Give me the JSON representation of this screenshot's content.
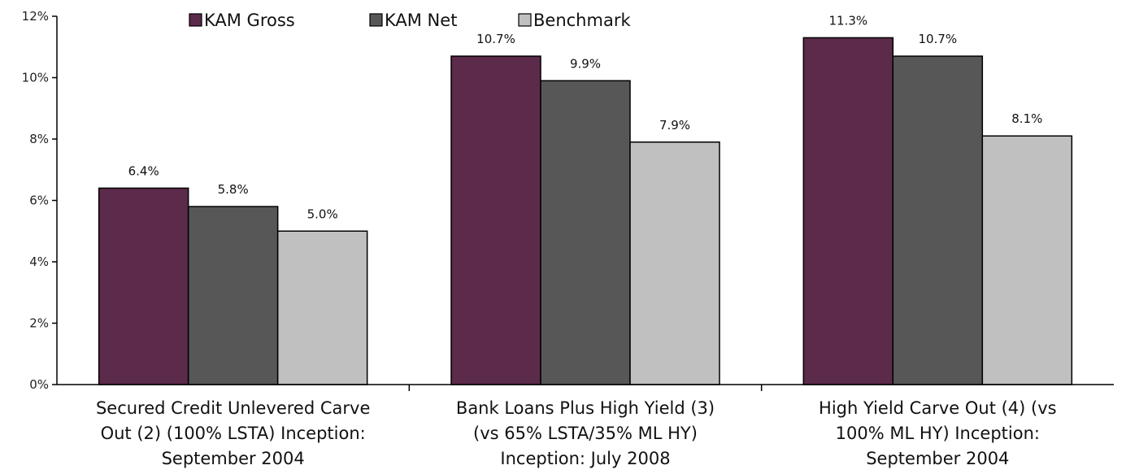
{
  "chart_data": {
    "type": "bar",
    "title": "",
    "xlabel": "",
    "ylabel": "",
    "categories": [
      [
        "Secured Credit Unlevered Carve",
        "Out (2) (100% LSTA) Inception:",
        "September 2004"
      ],
      [
        "Bank Loans Plus High Yield (3)",
        "(vs 65% LSTA/35% ML HY)",
        "Inception: July 2008"
      ],
      [
        "High Yield Carve Out (4) (vs",
        "100% ML HY) Inception:",
        "September 2004"
      ]
    ],
    "series": [
      {
        "name": "KAM Gross",
        "color": "#5c2a4a",
        "values": [
          6.4,
          10.7,
          11.3
        ],
        "labels": [
          "6.4%",
          "10.7%",
          "11.3%"
        ]
      },
      {
        "name": "KAM Net",
        "color": "#575757",
        "values": [
          5.8,
          9.9,
          10.7
        ],
        "labels": [
          "5.8%",
          "9.9%",
          "10.7%"
        ]
      },
      {
        "name": "Benchmark",
        "color": "#c0c0c0",
        "values": [
          5.0,
          7.9,
          8.1
        ],
        "labels": [
          "5.0%",
          "7.9%",
          "8.1%"
        ]
      }
    ],
    "ylim": [
      0,
      12
    ],
    "yticks": [
      0,
      2,
      4,
      6,
      8,
      10,
      12
    ],
    "ytick_labels": [
      "0%",
      "2%",
      "4%",
      "6%",
      "8%",
      "10%",
      "12%"
    ],
    "legend_position": "top-center",
    "grid": false
  }
}
